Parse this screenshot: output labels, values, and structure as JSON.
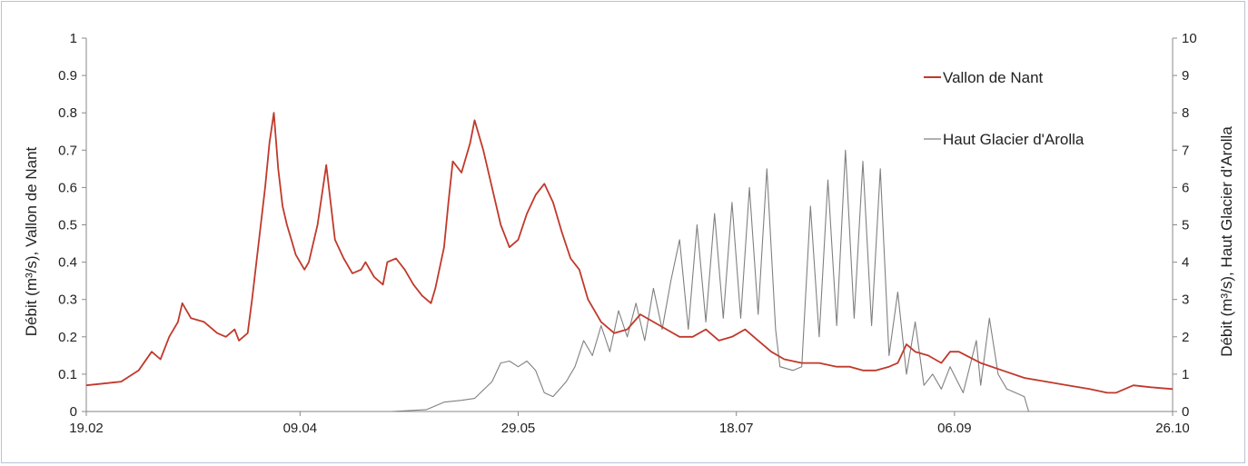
{
  "chart_data": {
    "type": "line",
    "x_ticks": [
      "19.02",
      "09.04",
      "29.05",
      "18.07",
      "06.09",
      "26.10"
    ],
    "x_tick_days": [
      0,
      49,
      99,
      149,
      199,
      249
    ],
    "xlim_days": [
      0,
      249
    ],
    "y_left": {
      "label": "Débit (m³/s), Vallon de Nant",
      "ylim": [
        0,
        1
      ],
      "ticks": [
        "0",
        "0.1",
        "0.2",
        "0.3",
        "0.4",
        "0.5",
        "0.6",
        "0.7",
        "0.8",
        "0.9",
        "1"
      ]
    },
    "y_right": {
      "label": "Débit (m³/s), Haut Glacier d'Arolla",
      "ylim": [
        0,
        10
      ],
      "ticks": [
        "0",
        "1",
        "2",
        "3",
        "4",
        "5",
        "6",
        "7",
        "8",
        "9",
        "10"
      ]
    },
    "grid": false,
    "legend_position": "top-right",
    "series": [
      {
        "name": "Vallon de Nant",
        "axis": "left",
        "color": "#c0392b",
        "points": [
          [
            0,
            0.07
          ],
          [
            4,
            0.075
          ],
          [
            8,
            0.08
          ],
          [
            12,
            0.11
          ],
          [
            15,
            0.16
          ],
          [
            17,
            0.14
          ],
          [
            19,
            0.2
          ],
          [
            21,
            0.24
          ],
          [
            22,
            0.29
          ],
          [
            24,
            0.25
          ],
          [
            27,
            0.24
          ],
          [
            30,
            0.21
          ],
          [
            32,
            0.2
          ],
          [
            34,
            0.22
          ],
          [
            35,
            0.19
          ],
          [
            37,
            0.21
          ],
          [
            38,
            0.3
          ],
          [
            39,
            0.4
          ],
          [
            40,
            0.5
          ],
          [
            41,
            0.6
          ],
          [
            42,
            0.72
          ],
          [
            43,
            0.8
          ],
          [
            44,
            0.65
          ],
          [
            45,
            0.55
          ],
          [
            46,
            0.5
          ],
          [
            47,
            0.46
          ],
          [
            48,
            0.42
          ],
          [
            50,
            0.38
          ],
          [
            51,
            0.4
          ],
          [
            53,
            0.5
          ],
          [
            54,
            0.58
          ],
          [
            55,
            0.66
          ],
          [
            56,
            0.56
          ],
          [
            57,
            0.46
          ],
          [
            59,
            0.41
          ],
          [
            61,
            0.37
          ],
          [
            63,
            0.38
          ],
          [
            64,
            0.4
          ],
          [
            66,
            0.36
          ],
          [
            68,
            0.34
          ],
          [
            69,
            0.4
          ],
          [
            71,
            0.41
          ],
          [
            73,
            0.38
          ],
          [
            75,
            0.34
          ],
          [
            77,
            0.31
          ],
          [
            79,
            0.29
          ],
          [
            80,
            0.33
          ],
          [
            82,
            0.44
          ],
          [
            83,
            0.56
          ],
          [
            84,
            0.67
          ],
          [
            86,
            0.64
          ],
          [
            88,
            0.72
          ],
          [
            89,
            0.78
          ],
          [
            91,
            0.7
          ],
          [
            93,
            0.6
          ],
          [
            95,
            0.5
          ],
          [
            97,
            0.44
          ],
          [
            99,
            0.46
          ],
          [
            101,
            0.53
          ],
          [
            103,
            0.58
          ],
          [
            105,
            0.61
          ],
          [
            107,
            0.56
          ],
          [
            109,
            0.48
          ],
          [
            111,
            0.41
          ],
          [
            113,
            0.38
          ],
          [
            115,
            0.3
          ],
          [
            118,
            0.24
          ],
          [
            121,
            0.21
          ],
          [
            124,
            0.22
          ],
          [
            127,
            0.26
          ],
          [
            130,
            0.24
          ],
          [
            133,
            0.22
          ],
          [
            136,
            0.2
          ],
          [
            139,
            0.2
          ],
          [
            142,
            0.22
          ],
          [
            145,
            0.19
          ],
          [
            148,
            0.2
          ],
          [
            151,
            0.22
          ],
          [
            154,
            0.19
          ],
          [
            157,
            0.16
          ],
          [
            160,
            0.14
          ],
          [
            164,
            0.13
          ],
          [
            168,
            0.13
          ],
          [
            172,
            0.12
          ],
          [
            175,
            0.12
          ],
          [
            178,
            0.11
          ],
          [
            181,
            0.11
          ],
          [
            184,
            0.12
          ],
          [
            186,
            0.13
          ],
          [
            188,
            0.18
          ],
          [
            190,
            0.16
          ],
          [
            193,
            0.15
          ],
          [
            196,
            0.13
          ],
          [
            198,
            0.16
          ],
          [
            200,
            0.16
          ],
          [
            205,
            0.13
          ],
          [
            210,
            0.11
          ],
          [
            215,
            0.09
          ],
          [
            220,
            0.08
          ],
          [
            225,
            0.07
          ],
          [
            230,
            0.06
          ],
          [
            234,
            0.05
          ],
          [
            236,
            0.05
          ],
          [
            240,
            0.07
          ],
          [
            244,
            0.065
          ],
          [
            249,
            0.06
          ]
        ]
      },
      {
        "name": "Haut Glacier d'Arolla",
        "axis": "right",
        "color": "#808080",
        "points": [
          [
            0,
            0
          ],
          [
            70,
            0
          ],
          [
            78,
            0.05
          ],
          [
            82,
            0.25
          ],
          [
            86,
            0.3
          ],
          [
            89,
            0.35
          ],
          [
            93,
            0.8
          ],
          [
            95,
            1.3
          ],
          [
            97,
            1.35
          ],
          [
            99,
            1.2
          ],
          [
            101,
            1.35
          ],
          [
            103,
            1.1
          ],
          [
            105,
            0.5
          ],
          [
            107,
            0.4
          ],
          [
            110,
            0.8
          ],
          [
            112,
            1.2
          ],
          [
            114,
            1.9
          ],
          [
            116,
            1.5
          ],
          [
            118,
            2.3
          ],
          [
            120,
            1.6
          ],
          [
            122,
            2.7
          ],
          [
            124,
            2.0
          ],
          [
            126,
            2.9
          ],
          [
            128,
            1.9
          ],
          [
            130,
            3.3
          ],
          [
            132,
            2.2
          ],
          [
            134,
            3.5
          ],
          [
            136,
            4.6
          ],
          [
            138,
            2.2
          ],
          [
            140,
            5.0
          ],
          [
            142,
            2.4
          ],
          [
            144,
            5.3
          ],
          [
            146,
            2.5
          ],
          [
            148,
            5.6
          ],
          [
            150,
            2.5
          ],
          [
            152,
            6.0
          ],
          [
            154,
            2.6
          ],
          [
            156,
            6.5
          ],
          [
            158,
            2.2
          ],
          [
            159,
            1.2
          ],
          [
            162,
            1.1
          ],
          [
            164,
            1.2
          ],
          [
            166,
            5.5
          ],
          [
            168,
            2.0
          ],
          [
            170,
            6.2
          ],
          [
            172,
            2.3
          ],
          [
            174,
            7.0
          ],
          [
            176,
            2.5
          ],
          [
            178,
            6.7
          ],
          [
            180,
            2.3
          ],
          [
            182,
            6.5
          ],
          [
            184,
            1.5
          ],
          [
            186,
            3.2
          ],
          [
            188,
            1.0
          ],
          [
            190,
            2.4
          ],
          [
            192,
            0.7
          ],
          [
            194,
            1.0
          ],
          [
            196,
            0.6
          ],
          [
            198,
            1.2
          ],
          [
            201,
            0.5
          ],
          [
            204,
            1.9
          ],
          [
            205,
            0.7
          ],
          [
            207,
            2.5
          ],
          [
            209,
            1.0
          ],
          [
            211,
            0.6
          ],
          [
            213,
            0.5
          ],
          [
            215,
            0.4
          ],
          [
            216,
            0
          ],
          [
            249,
            0
          ]
        ]
      }
    ]
  }
}
